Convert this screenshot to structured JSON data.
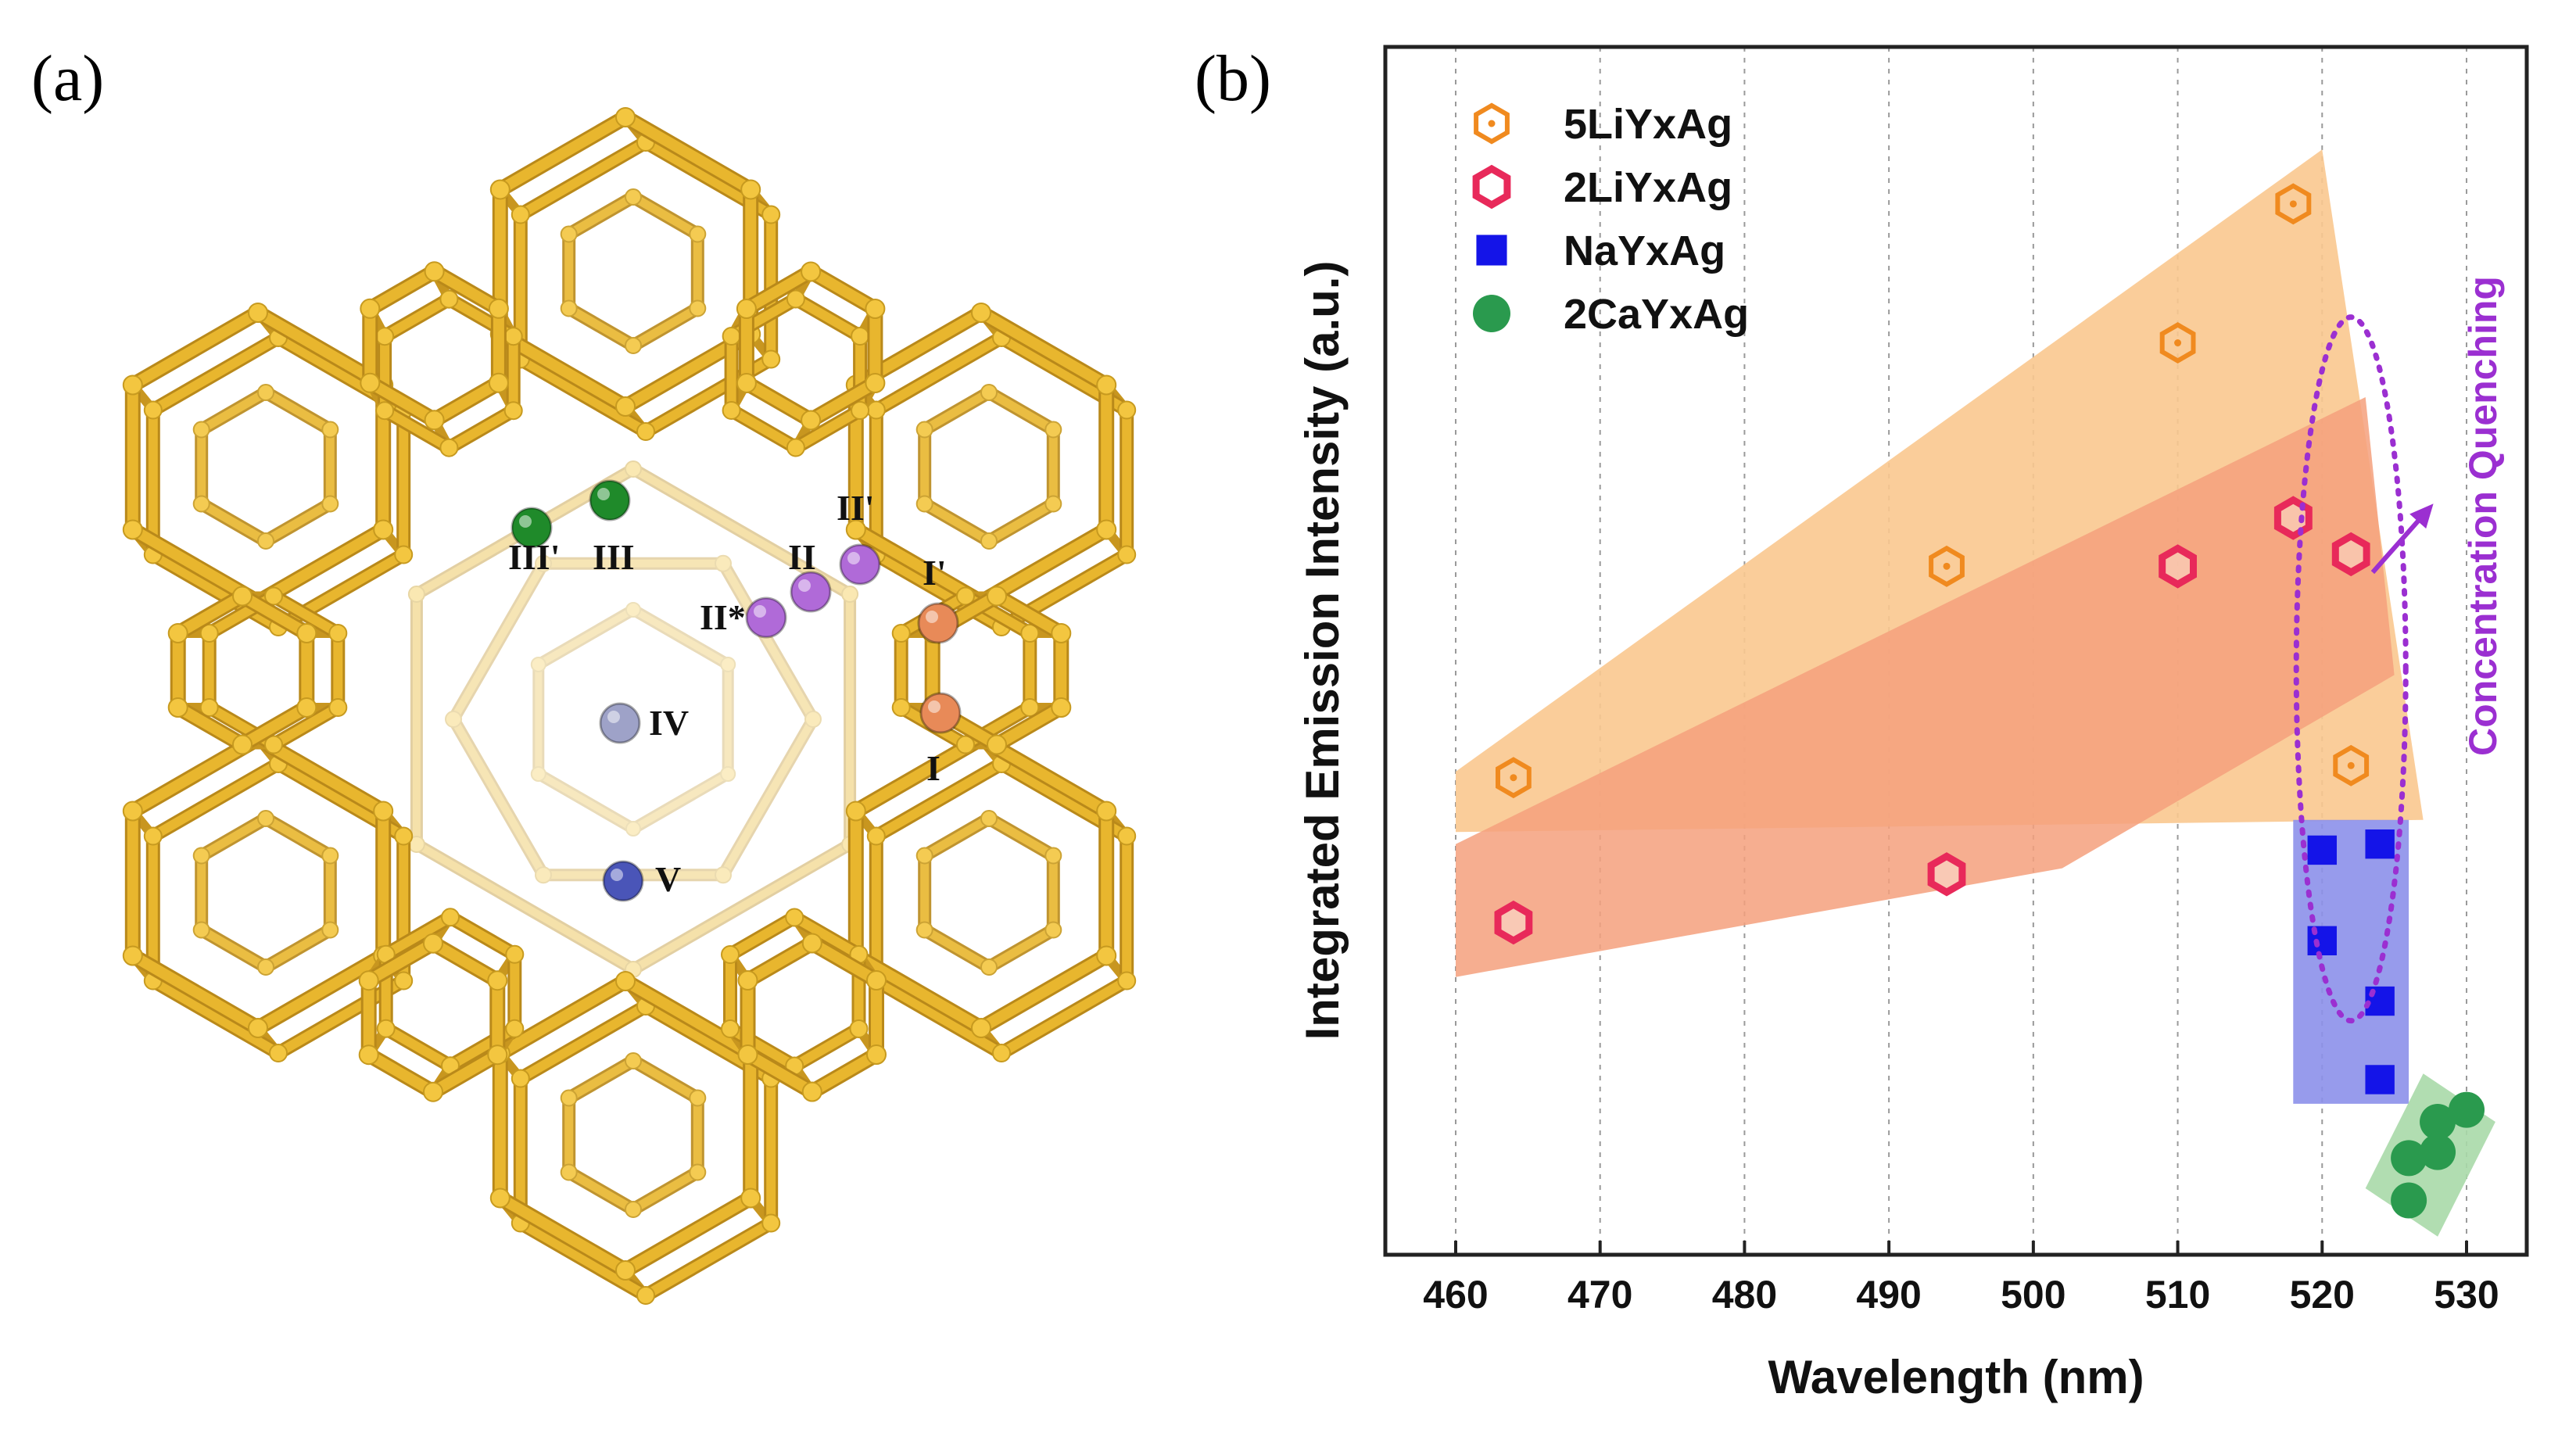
{
  "panel_a": {
    "label": "(a)",
    "framework_color": "#e8b62e",
    "sites": [
      {
        "label": "III'",
        "color": "#1f8a2a"
      },
      {
        "label": "III",
        "color": "#1f8a2a"
      },
      {
        "label": "II'",
        "color": "#b06ad8"
      },
      {
        "label": "II",
        "color": "#b06ad8"
      },
      {
        "label": "II*",
        "color": "#b06ad8"
      },
      {
        "label": "I'",
        "color": "#e88a58"
      },
      {
        "label": "I",
        "color": "#e88a58"
      },
      {
        "label": "IV",
        "color": "#9ea2c8"
      },
      {
        "label": "V",
        "color": "#4a55b8"
      }
    ]
  },
  "panel_b": {
    "label": "(b)",
    "annotation": {
      "text": "Concentration Quenching",
      "color": "#9b2fd1"
    }
  },
  "chart_data": {
    "type": "scatter",
    "title": "",
    "xlabel": "Wavelength (nm)",
    "ylabel": "Integrated Emission Intensity (a.u.)",
    "xlim": [
      455,
      533
    ],
    "ylim": [
      0,
      100
    ],
    "xticks": [
      460,
      470,
      480,
      490,
      500,
      510,
      520,
      530
    ],
    "x_grid": true,
    "y_tick_labels_shown": false,
    "legend_position": "top-left",
    "series": [
      {
        "name": "5LiYxAg",
        "marker": "hexagon-open-dot",
        "color": "#f08a1f",
        "points": [
          [
            464,
            39.5
          ],
          [
            494,
            57
          ],
          [
            510,
            75.5
          ],
          [
            518,
            87
          ],
          [
            522,
            40.5
          ]
        ]
      },
      {
        "name": "2LiYxAg",
        "marker": "hexagon-open",
        "color": "#e8295a",
        "points": [
          [
            464,
            27.5
          ],
          [
            494,
            31.5
          ],
          [
            510,
            57
          ],
          [
            518,
            61
          ],
          [
            522,
            58
          ]
        ]
      },
      {
        "name": "NaYxAg",
        "marker": "square",
        "color": "#1414e8",
        "points": [
          [
            520,
            33.5
          ],
          [
            524,
            34
          ],
          [
            520,
            26
          ],
          [
            524,
            21
          ],
          [
            524,
            14.5
          ]
        ]
      },
      {
        "name": "2CaYxAg",
        "marker": "circle",
        "color": "#2a9a4e",
        "points": [
          [
            530,
            12
          ],
          [
            528,
            11
          ],
          [
            528,
            8.5
          ],
          [
            526,
            8
          ],
          [
            526,
            4.5
          ]
        ]
      }
    ],
    "shaded_regions": [
      {
        "name": "5LiYxAg",
        "color": "#f9c88f",
        "polygon": [
          [
            460,
            40
          ],
          [
            520,
            91.5
          ],
          [
            527,
            36
          ],
          [
            460,
            35
          ]
        ]
      },
      {
        "name": "2LiYxAg",
        "color": "#f4a07d",
        "polygon": [
          [
            460,
            34
          ],
          [
            523,
            71
          ],
          [
            525,
            48
          ],
          [
            502,
            32
          ],
          [
            460,
            23
          ]
        ]
      },
      {
        "name": "NaYxAg",
        "color": "#8c90ea",
        "polygon": [
          [
            518,
            36
          ],
          [
            526,
            36
          ],
          [
            526,
            12.5
          ],
          [
            518,
            12.5
          ]
        ]
      },
      {
        "name": "2CaYxAg",
        "color": "#a9d9a8",
        "polygon": [
          [
            523,
            5.5
          ],
          [
            528,
            1.5
          ],
          [
            532,
            11
          ],
          [
            527,
            15
          ]
        ]
      }
    ],
    "annotation": {
      "text": "Concentration Quenching",
      "ellipse_center": [
        522,
        48.5
      ],
      "arrow": "up-right"
    }
  }
}
